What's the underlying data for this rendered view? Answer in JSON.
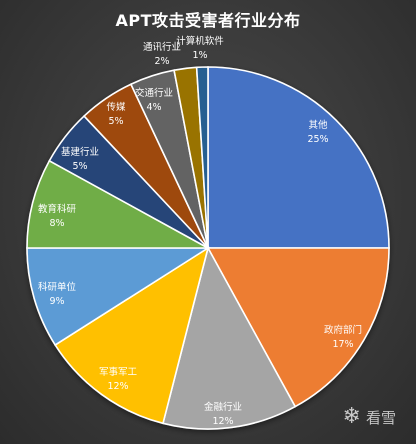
{
  "chart_data": {
    "type": "pie",
    "title": "APT攻击受害者行业分布",
    "slices": [
      {
        "label": "其他",
        "value": 25,
        "display": "25%",
        "color": "#4472c4"
      },
      {
        "label": "政府部门",
        "value": 17,
        "display": "17%",
        "color": "#ed7d31"
      },
      {
        "label": "金融行业",
        "value": 12,
        "display": "12%",
        "color": "#a5a5a5"
      },
      {
        "label": "军事军工",
        "value": 12,
        "display": "12%",
        "color": "#ffc000"
      },
      {
        "label": "科研单位",
        "value": 9,
        "display": "9%",
        "color": "#5b9bd5"
      },
      {
        "label": "教育科研",
        "value": 8,
        "display": "8%",
        "color": "#70ad47"
      },
      {
        "label": "基建行业",
        "value": 5,
        "display": "5%",
        "color": "#264478"
      },
      {
        "label": "传媒",
        "value": 5,
        "display": "5%",
        "color": "#9e480e"
      },
      {
        "label": "交通行业",
        "value": 4,
        "display": "4%",
        "color": "#636363"
      },
      {
        "label": "通讯行业",
        "value": 2,
        "display": "2%",
        "color": "#997300"
      },
      {
        "label": "计算机软件",
        "value": 1,
        "display": "1%",
        "color": "#255e91"
      }
    ]
  },
  "watermark": {
    "icon": "snowflake-icon",
    "text": "看雪"
  }
}
